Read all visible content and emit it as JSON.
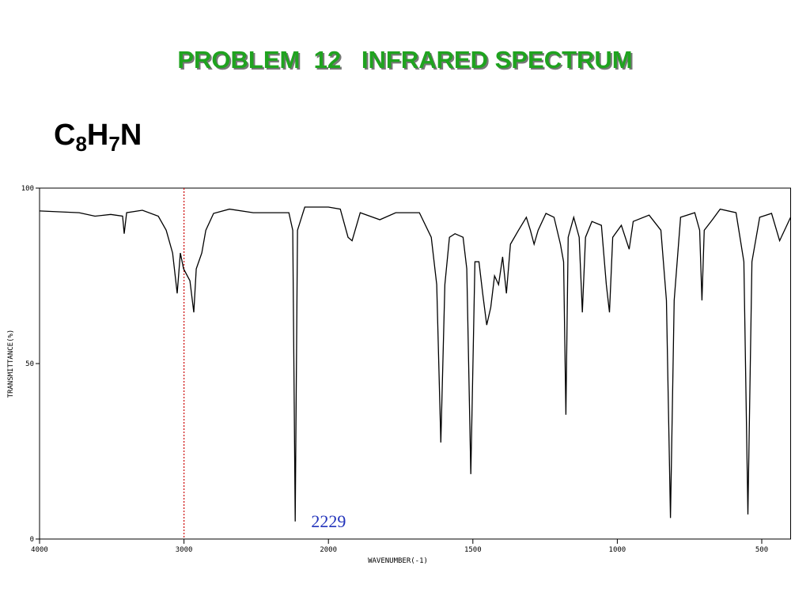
{
  "title": "PROBLEM  12   INFRARED SPECTRUM",
  "formula": [
    "C",
    "8",
    "H",
    "7",
    "N"
  ],
  "chart_data": {
    "type": "line",
    "xlabel": "WAVENUMBER(-1)",
    "ylabel": "TRANSMITTANCE(%)",
    "xlim": [
      4000,
      400
    ],
    "xticks": [
      4000,
      3000,
      2000,
      1500,
      1000,
      500
    ],
    "ylim": [
      0,
      100
    ],
    "yticks": [
      0,
      50,
      100
    ],
    "reference_lines": [
      {
        "x": 3000,
        "color": "#cc0000"
      }
    ],
    "annotations": [
      {
        "text": "2229",
        "x": 2229,
        "color": "#2233bb"
      }
    ],
    "x": [
      4000,
      3726,
      3616,
      3507,
      3425,
      3414,
      3397,
      3288,
      3178,
      3123,
      3079,
      3047,
      3025,
      3003,
      2959,
      2932,
      2915,
      2877,
      2849,
      2795,
      2685,
      2521,
      2411,
      2274,
      2247,
      2230,
      2214,
      2164,
      2000,
      1959,
      1932,
      1918,
      1890,
      1822,
      1767,
      1685,
      1644,
      1625,
      1611,
      1597,
      1581,
      1562,
      1534,
      1521,
      1507,
      1493,
      1479,
      1466,
      1452,
      1438,
      1425,
      1411,
      1397,
      1384,
      1370,
      1342,
      1315,
      1301,
      1288,
      1274,
      1247,
      1219,
      1197,
      1186,
      1178,
      1170,
      1151,
      1132,
      1121,
      1110,
      1088,
      1055,
      1038,
      1027,
      1016,
      986,
      959,
      945,
      890,
      849,
      830,
      816,
      803,
      781,
      732,
      715,
      707,
      699,
      671,
      644,
      589,
      562,
      548,
      534,
      507,
      466,
      438,
      400
    ],
    "series": [
      {
        "color": "#000000",
        "values": [
          93.5,
          93,
          92,
          92.5,
          92,
          87,
          93,
          93.7,
          92,
          88,
          81.5,
          70,
          81.5,
          77,
          73.6,
          64.6,
          77,
          81.5,
          88,
          92.8,
          94,
          93,
          93,
          93,
          88,
          5,
          88,
          94.6,
          94.6,
          94,
          86,
          85,
          93,
          91,
          93,
          93,
          86,
          72.5,
          27.5,
          72.5,
          86,
          87,
          86,
          77,
          18.5,
          79,
          79,
          70,
          61,
          66,
          75,
          72.5,
          80.4,
          70,
          84,
          88,
          91.7,
          88,
          84,
          88,
          92.8,
          91.7,
          84,
          79,
          35.4,
          86,
          91.7,
          86,
          64.6,
          86,
          90.5,
          89.4,
          72.5,
          64.6,
          86,
          89.4,
          82.6,
          90.5,
          92.3,
          88,
          68,
          6,
          68,
          91.7,
          93,
          88,
          68,
          88,
          91,
          94,
          93,
          79,
          7,
          79,
          91.7,
          92.8,
          85,
          91.7
        ]
      }
    ]
  }
}
